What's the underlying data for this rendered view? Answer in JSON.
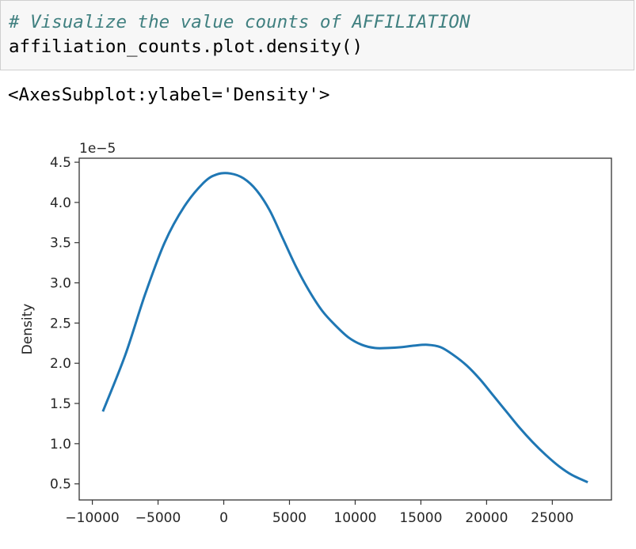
{
  "cell": {
    "comment": "# Visualize the value counts of AFFILIATION",
    "code": "affiliation_counts.plot.density()"
  },
  "output": {
    "repr": "<AxesSubplot:ylabel='Density'>"
  },
  "chart_data": {
    "type": "line",
    "ylabel": "Density",
    "xlabel": "",
    "offset_label": "1e−5",
    "xlim": [
      -11000,
      29500
    ],
    "ylim": [
      0.3,
      4.55
    ],
    "xticks": [
      -10000,
      -5000,
      0,
      5000,
      10000,
      15000,
      20000,
      25000
    ],
    "xtick_labels": [
      "−10000",
      "−5000",
      "0",
      "5000",
      "10000",
      "15000",
      "20000",
      "25000"
    ],
    "yticks": [
      0.5,
      1.0,
      1.5,
      2.0,
      2.5,
      3.0,
      3.5,
      4.0,
      4.5
    ],
    "ytick_labels": [
      "0.5",
      "1.0",
      "1.5",
      "2.0",
      "2.5",
      "3.0",
      "3.5",
      "4.0",
      "4.5"
    ],
    "line_color": "#1f77b4",
    "series": [
      {
        "x": [
          -9200,
          -7500,
          -6000,
          -4500,
          -3000,
          -1500,
          -500,
          500,
          1500,
          2500,
          3500,
          4500,
          5500,
          6500,
          7500,
          8500,
          9500,
          10500,
          11500,
          12500,
          13500,
          14500,
          15500,
          16500,
          17500,
          18500,
          19500,
          20500,
          21500,
          22500,
          23500,
          24500,
          25500,
          26500,
          27700
        ],
        "y": [
          1.4,
          2.1,
          2.85,
          3.5,
          3.95,
          4.25,
          4.35,
          4.36,
          4.3,
          4.15,
          3.9,
          3.55,
          3.2,
          2.9,
          2.65,
          2.47,
          2.32,
          2.23,
          2.19,
          2.19,
          2.2,
          2.22,
          2.23,
          2.2,
          2.1,
          1.97,
          1.8,
          1.6,
          1.4,
          1.2,
          1.02,
          0.86,
          0.72,
          0.61,
          0.52
        ]
      }
    ]
  }
}
